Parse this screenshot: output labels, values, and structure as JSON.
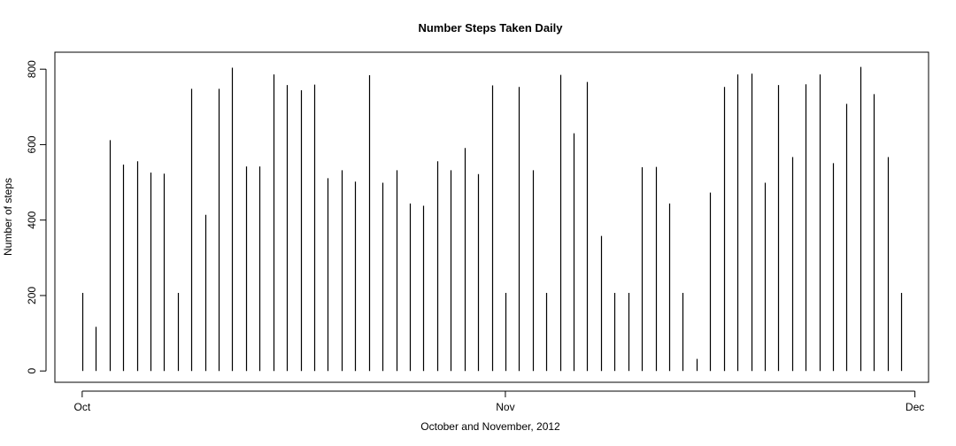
{
  "chart_data": {
    "type": "bar",
    "title": "Number Steps Taken Daily",
    "xlabel": "October and November, 2012",
    "ylabel": "Number of steps",
    "x_tick_labels": [
      "Oct",
      "Nov",
      "Dec"
    ],
    "x_tick_dates": [
      "2012-10-01",
      "2012-11-01",
      "2012-12-01"
    ],
    "y_ticks": [
      0,
      200,
      400,
      600,
      800
    ],
    "ylim": [
      -30,
      845
    ],
    "xlim": [
      "2012-09-29",
      "2012-12-02"
    ],
    "grid": false,
    "legend": "none",
    "line_color": "#000000",
    "series": [
      {
        "x": [
          "2012-10-01",
          "2012-10-02",
          "2012-10-03",
          "2012-10-04",
          "2012-10-05",
          "2012-10-06",
          "2012-10-07",
          "2012-10-08",
          "2012-10-09",
          "2012-10-10",
          "2012-10-11",
          "2012-10-12",
          "2012-10-13",
          "2012-10-14",
          "2012-10-15",
          "2012-10-16",
          "2012-10-17",
          "2012-10-18",
          "2012-10-19",
          "2012-10-20",
          "2012-10-21",
          "2012-10-22",
          "2012-10-23",
          "2012-10-24",
          "2012-10-25",
          "2012-10-26",
          "2012-10-27",
          "2012-10-28",
          "2012-10-29",
          "2012-10-30",
          "2012-10-31",
          "2012-11-01",
          "2012-11-02",
          "2012-11-03",
          "2012-11-04",
          "2012-11-05",
          "2012-11-06",
          "2012-11-07",
          "2012-11-08",
          "2012-11-09",
          "2012-11-10",
          "2012-11-11",
          "2012-11-12",
          "2012-11-13",
          "2012-11-14",
          "2012-11-15",
          "2012-11-16",
          "2012-11-17",
          "2012-11-18",
          "2012-11-19",
          "2012-11-20",
          "2012-11-21",
          "2012-11-22",
          "2012-11-23",
          "2012-11-24",
          "2012-11-25",
          "2012-11-26",
          "2012-11-27",
          "2012-11-28",
          "2012-11-29",
          "2012-11-30"
        ],
        "values": [
          207,
          117,
          612,
          547,
          556,
          526,
          523,
          207,
          748,
          414,
          748,
          804,
          542,
          542,
          786,
          758,
          744,
          759,
          511,
          532,
          502,
          784,
          499,
          532,
          444,
          438,
          556,
          532,
          591,
          522,
          757,
          207,
          753,
          532,
          207,
          785,
          630,
          766,
          358,
          207,
          207,
          540,
          541,
          444,
          207,
          32,
          473,
          753,
          786,
          788,
          499,
          758,
          567,
          760,
          786,
          551,
          708,
          806,
          734,
          567,
          207
        ]
      }
    ]
  }
}
